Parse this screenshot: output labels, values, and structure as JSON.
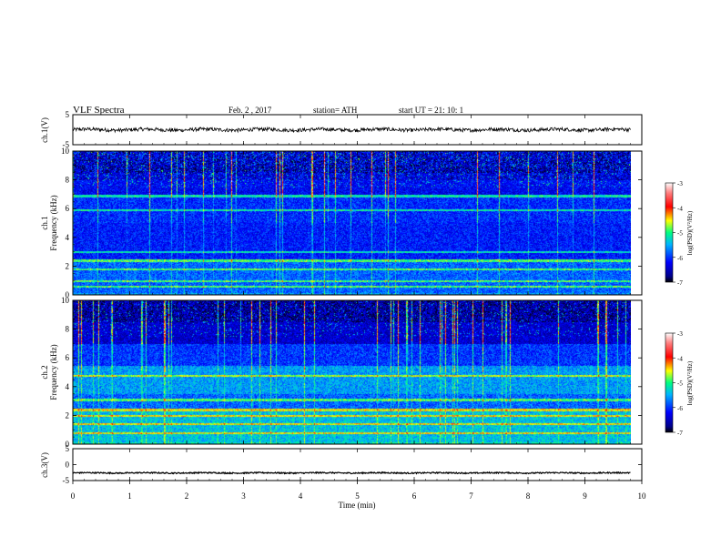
{
  "header": {
    "title": "VLF  Spectra",
    "date": "Feb. 2  , 2017",
    "station": "station= ATH",
    "start": "start  UT  =   21: 10: 1"
  },
  "chart_data": [
    {
      "type": "line",
      "name": "ch1-waveform",
      "ylabel": "ch.1(V)",
      "ylim": [
        -5,
        5
      ],
      "yticks": [
        "5",
        "-5"
      ],
      "xlim": [
        0,
        10
      ],
      "mean": 0,
      "amplitude": 0.6,
      "color": "#000000"
    },
    {
      "type": "heatmap",
      "name": "ch1-spectrogram",
      "ylabel": "ch.1\nFrequency  (kHz)",
      "ylim": [
        0,
        10
      ],
      "yticks": [
        "0",
        "2",
        "4",
        "6",
        "8",
        "10"
      ],
      "xlim": [
        0,
        10
      ],
      "data_end_min": 9.8,
      "colorbar": {
        "label": "log(PSD)(V²/Hz)",
        "range": [
          -7,
          -3
        ],
        "ticks": [
          "-3",
          "-4",
          "-5",
          "-6",
          "-7"
        ]
      },
      "dominant_lines_khz": [
        0.6,
        1.0,
        1.8,
        2.4,
        3.0,
        5.9,
        6.9
      ]
    },
    {
      "type": "heatmap",
      "name": "ch2-spectrogram",
      "ylabel": "ch.2\nFrequency  (kHz)",
      "ylim": [
        0,
        10
      ],
      "yticks": [
        "0",
        "2",
        "4",
        "6",
        "8",
        "10"
      ],
      "xlim": [
        0,
        10
      ],
      "data_end_min": 9.8,
      "colorbar": {
        "label": "log(PSD)(V²/Hz)",
        "range": [
          -7,
          -3
        ],
        "ticks": [
          "-3",
          "-4",
          "-5",
          "-6",
          "-7"
        ]
      },
      "dominant_lines_khz": [
        0.8,
        1.4,
        2.0,
        2.4,
        3.1,
        4.8
      ]
    },
    {
      "type": "line",
      "name": "ch3-waveform",
      "ylabel": "ch.3(V)",
      "ylim": [
        -5,
        5
      ],
      "yticks": [
        "5",
        "0",
        "-5"
      ],
      "xlim": [
        0,
        10
      ],
      "mean": -2.6,
      "amplitude": 0.2,
      "color": "#000000"
    }
  ],
  "xaxis": {
    "label": "Time  (min)",
    "ticks": [
      "0",
      "1",
      "2",
      "3",
      "4",
      "5",
      "6",
      "7",
      "8",
      "9",
      "10"
    ]
  },
  "colors": {
    "background": "#ffffff",
    "axes": "#000000"
  }
}
